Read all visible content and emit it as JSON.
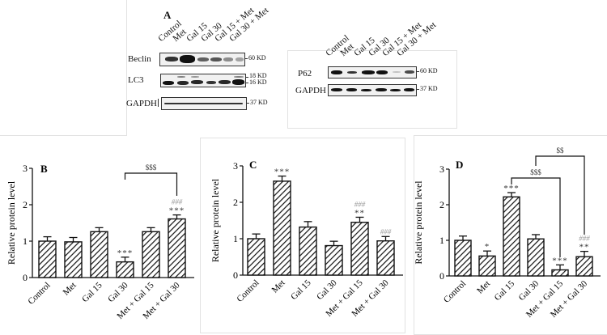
{
  "panel_a": {
    "letter": "A",
    "left_blot": {
      "lanes": [
        "Control",
        "Met",
        "Gal 15",
        "Gal 30",
        "Gal 15 + Met",
        "Gal 30 + Met"
      ],
      "rows": [
        {
          "label": "Beclin",
          "kd": [
            "60 KD"
          ]
        },
        {
          "label": "LC3",
          "kd": [
            "18 KD",
            "16 KD"
          ]
        },
        {
          "label": "GAPDH",
          "kd": [
            "37 KD"
          ]
        }
      ]
    },
    "right_blot": {
      "lanes": [
        "Control",
        "Met",
        "Gal 15",
        "Gal 30",
        "Gal 15 + Met",
        "Gal 30 + Met"
      ],
      "rows": [
        {
          "label": "P62",
          "kd": [
            "60 KD"
          ]
        },
        {
          "label": "GAPDH",
          "kd": [
            "37 KD"
          ]
        }
      ]
    }
  },
  "chart_data": [
    {
      "panel": "B",
      "type": "bar",
      "title": "",
      "xlabel": "",
      "ylabel": "Relative protein level",
      "ylim": [
        0,
        3
      ],
      "yticks": [
        "0",
        "1",
        "2",
        "3"
      ],
      "categories": [
        "Control",
        "Met",
        "Gal 15",
        "Gal 30",
        "Met + Gal 15",
        "Met + Gal 30"
      ],
      "values": [
        1.0,
        0.98,
        1.26,
        0.43,
        1.26,
        1.61
      ],
      "errors": [
        0.12,
        0.12,
        0.11,
        0.13,
        0.11,
        0.11
      ],
      "annotations": [
        "",
        "",
        "",
        "***",
        "",
        "***"
      ],
      "annotations_hash": [
        "",
        "",
        "",
        "",
        "",
        "###"
      ],
      "brackets": [
        {
          "from": 3,
          "to": 5,
          "label": "$$$"
        }
      ]
    },
    {
      "panel": "C",
      "type": "bar",
      "title": "",
      "xlabel": "",
      "ylabel": "Relative protein level",
      "ylim": [
        0,
        3
      ],
      "yticks": [
        "0",
        "1",
        "2",
        "3"
      ],
      "categories": [
        "Control",
        "Met",
        "Gal 15",
        "Gal 30",
        "Met + Gal 15",
        "Met + Gal 30"
      ],
      "values": [
        1.0,
        2.58,
        1.32,
        0.81,
        1.45,
        0.94
      ],
      "errors": [
        0.13,
        0.14,
        0.15,
        0.12,
        0.14,
        0.12
      ],
      "annotations": [
        "",
        "***",
        "",
        "",
        "**",
        ""
      ],
      "annotations_hash": [
        "",
        "",
        "",
        "",
        "###",
        "###"
      ],
      "brackets": []
    },
    {
      "panel": "D",
      "type": "bar",
      "title": "",
      "xlabel": "",
      "ylabel": "Relative protein level",
      "ylim": [
        0,
        3
      ],
      "yticks": [
        "0",
        "1",
        "2",
        "3"
      ],
      "categories": [
        "Control",
        "Met",
        "Gal 15",
        "Gal 30",
        "Met + Gal 15",
        "Met + Gal 30"
      ],
      "values": [
        1.0,
        0.56,
        2.22,
        1.04,
        0.17,
        0.54
      ],
      "errors": [
        0.12,
        0.14,
        0.12,
        0.12,
        0.14,
        0.15
      ],
      "annotations": [
        "",
        "*",
        "***",
        "",
        "***",
        "**"
      ],
      "annotations_hash": [
        "",
        "",
        "",
        "",
        "",
        "###"
      ],
      "brackets": [
        {
          "from": 2,
          "to": 4,
          "label": "$$$"
        },
        {
          "from": 3,
          "to": 5,
          "label": "$$"
        }
      ]
    }
  ]
}
